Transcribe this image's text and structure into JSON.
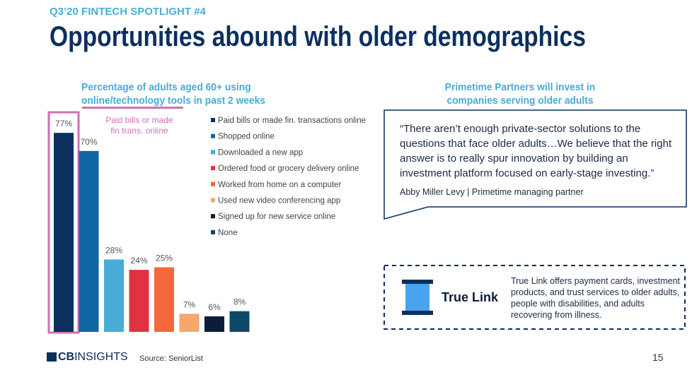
{
  "header": {
    "kicker": "Q3’20 FINTECH SPOTLIGHT #4",
    "title": "Opportunities abound with older demographics"
  },
  "chart_data": {
    "type": "bar",
    "title": "Percentage of adults aged 60+ using online/technology tools in past 2 weeks",
    "annotation": "Paid bills or made fin trans. online",
    "categories": [
      "Paid bills or made fin. transactions online",
      "Shopped online",
      "Downloaded a new app",
      "Ordered food or grocery delivery online",
      "Worked from home on a computer",
      "Used new video conferencing app",
      "Signed up for new service online",
      "None"
    ],
    "values": [
      77,
      70,
      28,
      24,
      25,
      7,
      6,
      8
    ],
    "value_labels": [
      "77%",
      "70%",
      "28%",
      "24%",
      "25%",
      "7%",
      "6%",
      "8%"
    ],
    "colors": [
      "#0c2f5e",
      "#0f67a3",
      "#47acd6",
      "#df3341",
      "#f4673a",
      "#f6a76c",
      "#0c1d3a",
      "#0f4867"
    ]
  },
  "quote": {
    "heading": "Primetime Partners will invest in companies serving older adults",
    "text": "“There aren’t enough private-sector solutions to the questions that face older adults…We believe that the right answer is to really spur innovation by building an investment platform focused on early-stage investing.”",
    "attribution": "Abby Miller Levy | Primetime managing partner"
  },
  "company": {
    "logo": "True Link",
    "text": "True Link offers payment cards, investment products, and trust services to older adults, people with disabilities, and adults recovering from illness."
  },
  "footer": {
    "logo_bold": "CB",
    "logo_rest": "INSIGHTS",
    "source": "Source: SeniorList",
    "page": "15"
  }
}
